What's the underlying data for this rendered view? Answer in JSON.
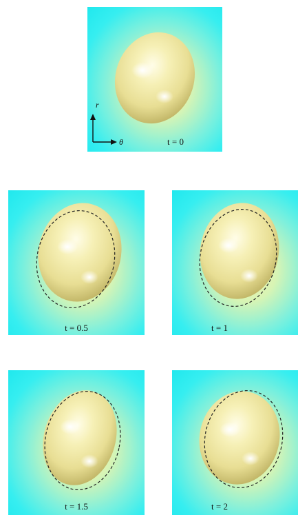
{
  "panels": [
    {
      "time_label": "t = 0",
      "show_reference_outline": false,
      "show_axes": true
    },
    {
      "time_label": "t = 0.5",
      "show_reference_outline": true,
      "show_axes": false
    },
    {
      "time_label": "t = 1",
      "show_reference_outline": true,
      "show_axes": false
    },
    {
      "time_label": "t = 1.5",
      "show_reference_outline": true,
      "show_axes": false
    },
    {
      "time_label": "t = 2",
      "show_reference_outline": true,
      "show_axes": false
    }
  ],
  "axes": {
    "vertical": "r",
    "horizontal": "θ"
  },
  "colors": {
    "background_edge": "#20e8ee",
    "background_center": "#f4f7b0",
    "sphere": "#f2eba8",
    "sphere_shadow": "#b8ad5e",
    "reference_outline": "#222222"
  }
}
